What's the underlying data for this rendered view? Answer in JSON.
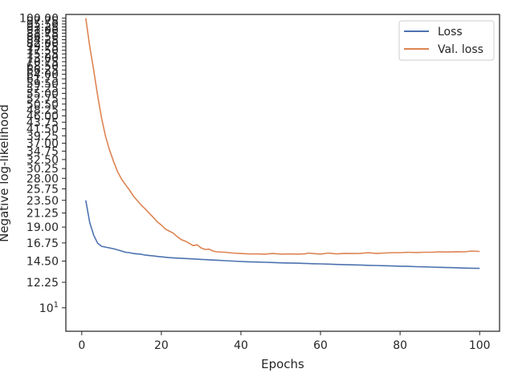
{
  "chart_data": {
    "type": "line",
    "title": "",
    "xlabel": "Epochs",
    "ylabel": "Negative log-likelihood",
    "xlim": [
      -4,
      105
    ],
    "ylim": [
      8.3,
      103
    ],
    "yscale": "log",
    "grid": false,
    "legend_position": "top-right",
    "x_ticks": [
      0,
      20,
      40,
      60,
      80,
      100
    ],
    "x_tick_labels": [
      "0",
      "20",
      "40",
      "60",
      "80",
      "100"
    ],
    "y_ticks": [
      12.25,
      14.5,
      16.75,
      19.0,
      21.25,
      23.5,
      25.75,
      28.0,
      30.25,
      32.5,
      34.75,
      37.0,
      39.25,
      41.5,
      43.75,
      46.0,
      48.25,
      50.5,
      52.75,
      55.0,
      57.25,
      59.5,
      61.75,
      64.0,
      66.25,
      68.5,
      70.75,
      73.0,
      75.25,
      77.5,
      79.75,
      82.0,
      84.25,
      86.5,
      88.75,
      91.0,
      93.25,
      95.5,
      97.75,
      100.0
    ],
    "y_tick_labels": [
      "12.25",
      "14.50",
      "16.75",
      "19.00",
      "21.25",
      "23.50",
      "25.75",
      "28.00",
      "30.25",
      "32.50",
      "34.75",
      "37.00",
      "39.25",
      "41.50",
      "43.75",
      "46.00",
      "48.25",
      "50.50",
      "52.75",
      "55.00",
      "57.25",
      "59.50",
      "61.75",
      "64.00",
      "66.25",
      "68.50",
      "70.75",
      "73.00",
      "75.25",
      "77.50",
      "79.75",
      "82.00",
      "84.25",
      "86.50",
      "88.75",
      "91.00",
      "93.25",
      "95.50",
      "97.75",
      "100.00"
    ],
    "minor_y_tick": {
      "value": 10,
      "label_base": "10",
      "label_exp": "1"
    },
    "series": [
      {
        "name": "Loss",
        "color": "#4c72b0",
        "points": [
          [
            1,
            23.5
          ],
          [
            2,
            19.7
          ],
          [
            3,
            17.8
          ],
          [
            4,
            16.7
          ],
          [
            5,
            16.3
          ],
          [
            6,
            16.2
          ],
          [
            7,
            16.1
          ],
          [
            8,
            16.0
          ],
          [
            9,
            15.85
          ],
          [
            10,
            15.7
          ],
          [
            11,
            15.55
          ],
          [
            12,
            15.5
          ],
          [
            13,
            15.4
          ],
          [
            14,
            15.35
          ],
          [
            15,
            15.3
          ],
          [
            16,
            15.2
          ],
          [
            17,
            15.15
          ],
          [
            18,
            15.1
          ],
          [
            19,
            15.05
          ],
          [
            20,
            15.0
          ],
          [
            22,
            14.9
          ],
          [
            24,
            14.85
          ],
          [
            26,
            14.8
          ],
          [
            28,
            14.75
          ],
          [
            30,
            14.7
          ],
          [
            32,
            14.65
          ],
          [
            34,
            14.6
          ],
          [
            36,
            14.55
          ],
          [
            38,
            14.5
          ],
          [
            40,
            14.45
          ],
          [
            42,
            14.42
          ],
          [
            44,
            14.39
          ],
          [
            46,
            14.36
          ],
          [
            48,
            14.33
          ],
          [
            50,
            14.3
          ],
          [
            52,
            14.28
          ],
          [
            54,
            14.26
          ],
          [
            56,
            14.23
          ],
          [
            58,
            14.2
          ],
          [
            60,
            14.18
          ],
          [
            62,
            14.15
          ],
          [
            64,
            14.12
          ],
          [
            66,
            14.1
          ],
          [
            68,
            14.07
          ],
          [
            70,
            14.05
          ],
          [
            72,
            14.02
          ],
          [
            74,
            14.0
          ],
          [
            76,
            13.97
          ],
          [
            78,
            13.95
          ],
          [
            80,
            13.92
          ],
          [
            82,
            13.9
          ],
          [
            84,
            13.87
          ],
          [
            86,
            13.85
          ],
          [
            88,
            13.82
          ],
          [
            90,
            13.8
          ],
          [
            92,
            13.77
          ],
          [
            94,
            13.75
          ],
          [
            96,
            13.72
          ],
          [
            98,
            13.7
          ],
          [
            100,
            13.68
          ]
        ]
      },
      {
        "name": "Val. loss",
        "color": "#dd8452",
        "points": [
          [
            1,
            100
          ],
          [
            2,
            80
          ],
          [
            3,
            66
          ],
          [
            4,
            54
          ],
          [
            5,
            45
          ],
          [
            6,
            39
          ],
          [
            7,
            35
          ],
          [
            8,
            32
          ],
          [
            9,
            29.5
          ],
          [
            10,
            27.8
          ],
          [
            11,
            26.6
          ],
          [
            12,
            25.5
          ],
          [
            13,
            24.3
          ],
          [
            14,
            23.4
          ],
          [
            15,
            22.6
          ],
          [
            16,
            21.9
          ],
          [
            17,
            21.2
          ],
          [
            18,
            20.5
          ],
          [
            19,
            19.8
          ],
          [
            20,
            19.3
          ],
          [
            21,
            18.7
          ],
          [
            22,
            18.4
          ],
          [
            23,
            18.1
          ],
          [
            24,
            17.6
          ],
          [
            25,
            17.2
          ],
          [
            26,
            17.0
          ],
          [
            27,
            16.7
          ],
          [
            28,
            16.4
          ],
          [
            29,
            16.5
          ],
          [
            30,
            16.1
          ],
          [
            31,
            15.9
          ],
          [
            32,
            15.95
          ],
          [
            33,
            15.7
          ],
          [
            34,
            15.6
          ],
          [
            36,
            15.55
          ],
          [
            38,
            15.45
          ],
          [
            40,
            15.4
          ],
          [
            42,
            15.35
          ],
          [
            44,
            15.35
          ],
          [
            46,
            15.33
          ],
          [
            48,
            15.4
          ],
          [
            50,
            15.33
          ],
          [
            52,
            15.35
          ],
          [
            54,
            15.33
          ],
          [
            56,
            15.35
          ],
          [
            57,
            15.45
          ],
          [
            58,
            15.4
          ],
          [
            60,
            15.33
          ],
          [
            62,
            15.45
          ],
          [
            64,
            15.35
          ],
          [
            66,
            15.42
          ],
          [
            68,
            15.4
          ],
          [
            70,
            15.42
          ],
          [
            72,
            15.5
          ],
          [
            74,
            15.42
          ],
          [
            76,
            15.45
          ],
          [
            78,
            15.5
          ],
          [
            80,
            15.5
          ],
          [
            82,
            15.55
          ],
          [
            84,
            15.52
          ],
          [
            86,
            15.55
          ],
          [
            88,
            15.55
          ],
          [
            90,
            15.6
          ],
          [
            92,
            15.58
          ],
          [
            94,
            15.62
          ],
          [
            96,
            15.6
          ],
          [
            98,
            15.7
          ],
          [
            100,
            15.65
          ]
        ]
      }
    ]
  }
}
